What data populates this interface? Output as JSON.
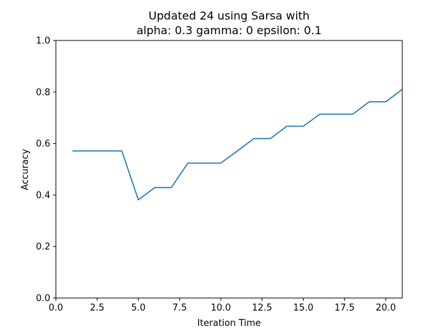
{
  "chart_data": {
    "type": "line",
    "title_line1": "Updated 24 using Sarsa with",
    "title_line2": "alpha: 0.3 gamma: 0 epsilon: 0.1",
    "xlabel": "Iteration Time",
    "ylabel": "Accuracy",
    "xlim": [
      0,
      21
    ],
    "ylim": [
      0,
      1.0
    ],
    "x_ticks": [
      0,
      2.5,
      5,
      7.5,
      10,
      12.5,
      15,
      17.5,
      20
    ],
    "x_tick_labels": [
      "0.0",
      "2.5",
      "5.0",
      "7.5",
      "10.0",
      "12.5",
      "15.0",
      "17.5",
      "20.0"
    ],
    "y_ticks": [
      0,
      0.2,
      0.4,
      0.6,
      0.8,
      1.0
    ],
    "y_tick_labels": [
      "0.0",
      "0.2",
      "0.4",
      "0.6",
      "0.8",
      "1.0"
    ],
    "grid": false,
    "line_color": "#1f77b4",
    "series": [
      {
        "x": [
          1,
          2,
          3,
          4,
          5,
          6,
          7,
          8,
          9,
          10,
          11,
          12,
          13,
          14,
          15,
          16,
          17,
          18,
          19,
          20,
          21
        ],
        "values": [
          0.571,
          0.571,
          0.571,
          0.571,
          0.381,
          0.429,
          0.429,
          0.524,
          0.524,
          0.524,
          0.571,
          0.619,
          0.619,
          0.667,
          0.667,
          0.714,
          0.714,
          0.714,
          0.762,
          0.762,
          0.81
        ]
      }
    ]
  }
}
